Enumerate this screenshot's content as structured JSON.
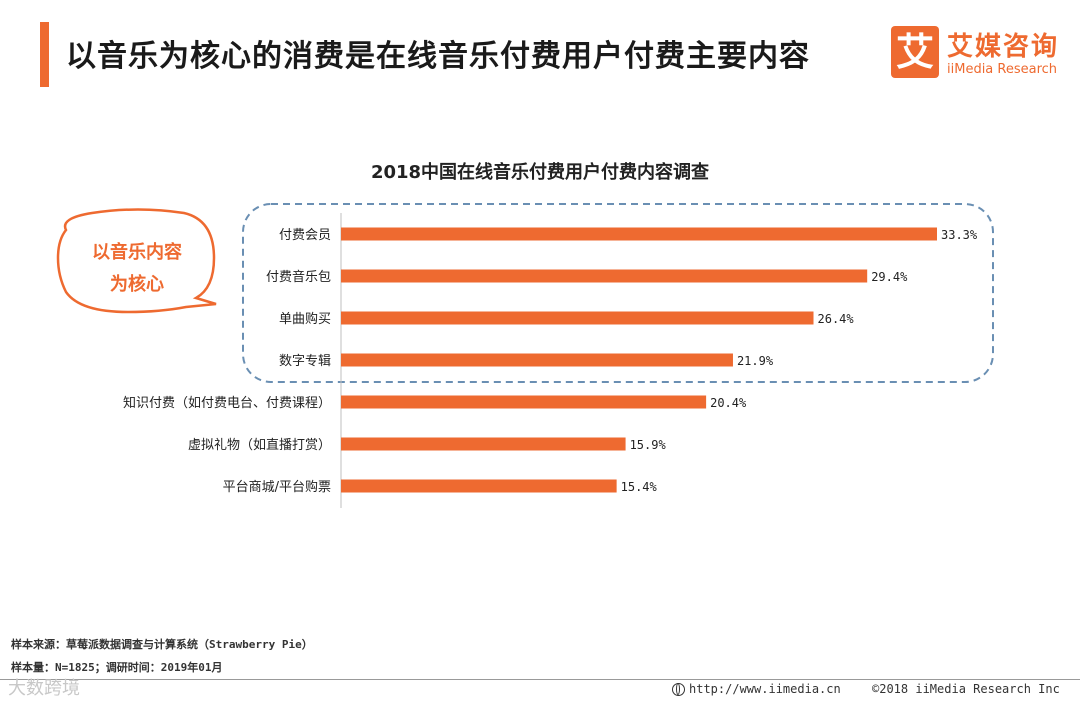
{
  "header": {
    "title": "以音乐为核心的消费是在线音乐付费用户付费主要内容"
  },
  "logo": {
    "mark": "艾",
    "name_cn": "艾媒咨询",
    "name_en": "iiMedia Research"
  },
  "callout": {
    "line1": "以音乐内容",
    "line2": "为核心"
  },
  "colors": {
    "accent": "#ee6a30",
    "bar": "#ee6a30",
    "highlight_border": "#6a8fb3"
  },
  "chart_data": {
    "type": "bar",
    "orientation": "horizontal",
    "title": "2018中国在线音乐付费用户付费内容调查",
    "categories": [
      "付费会员",
      "付费音乐包",
      "单曲购买",
      "数字专辑",
      "知识付费（如付费电台、付费课程）",
      "虚拟礼物（如直播打赏）",
      "平台商城/平台购票"
    ],
    "values": [
      33.3,
      29.4,
      26.4,
      21.9,
      20.4,
      15.9,
      15.4
    ],
    "value_labels": [
      "33.3%",
      "29.4%",
      "26.4%",
      "21.9%",
      "20.4%",
      "15.9%",
      "15.4%"
    ],
    "unit": "%",
    "xlim": [
      0,
      33.3
    ],
    "grid": false,
    "legend": "none"
  },
  "footer": {
    "source": "样本来源：草莓派数据调查与计算系统（Strawberry Pie）",
    "sample": "样本量：N=1825；调研时间：2019年01月",
    "watermark": "大数跨境",
    "url": "http://www.iimedia.cn",
    "copyright": "©2018  iiMedia Research  Inc"
  }
}
